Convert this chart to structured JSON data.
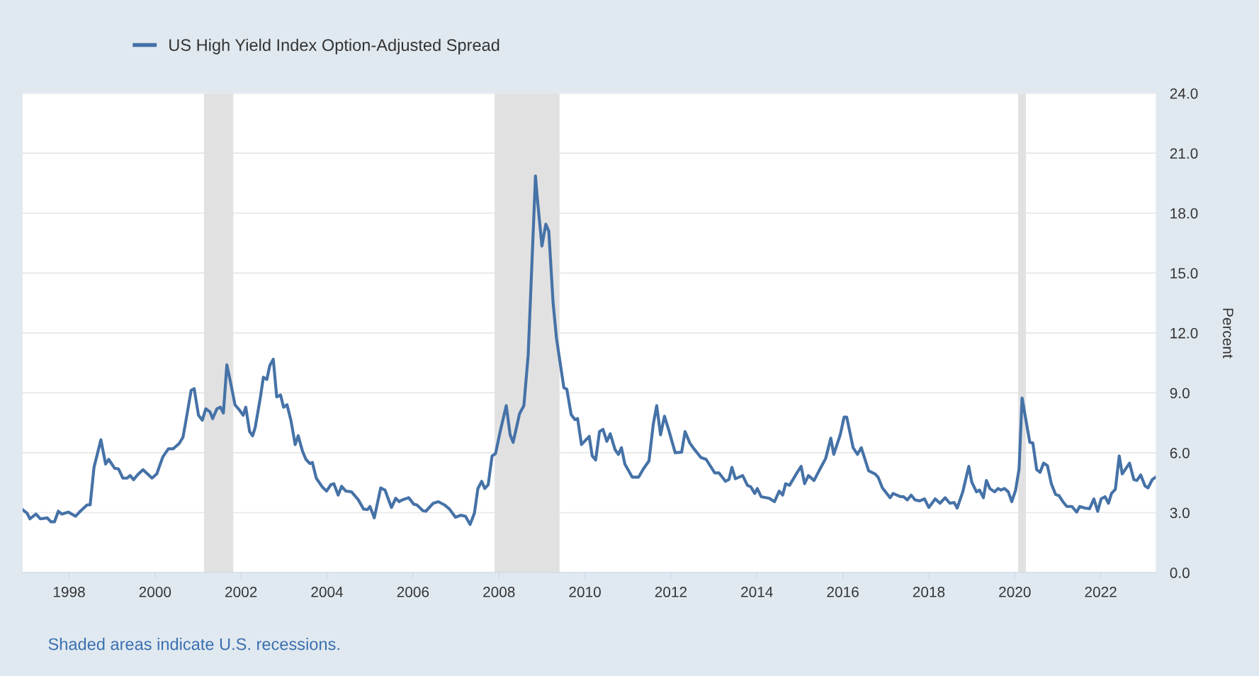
{
  "chart_data": {
    "type": "line",
    "x": [
      1996.92,
      1997.02,
      1997.09,
      1997.23,
      1997.33,
      1997.49,
      1997.58,
      1997.66,
      1997.75,
      1997.83,
      1997.98,
      1998.15,
      1998.26,
      1998.42,
      1998.49,
      1998.58,
      1998.74,
      1998.85,
      1998.92,
      1999.06,
      1999.15,
      1999.25,
      1999.35,
      1999.42,
      1999.5,
      1999.59,
      1999.72,
      1999.93,
      2000.04,
      2000.18,
      2000.31,
      2000.42,
      2000.56,
      2000.65,
      2000.72,
      2000.84,
      2000.91,
      2001.01,
      2001.1,
      2001.18,
      2001.28,
      2001.34,
      2001.44,
      2001.52,
      2001.59,
      2001.67,
      2001.74,
      2001.86,
      2001.97,
      2002.05,
      2002.11,
      2002.2,
      2002.27,
      2002.33,
      2002.45,
      2002.52,
      2002.6,
      2002.67,
      2002.75,
      2002.83,
      2002.92,
      2002.99,
      2003.07,
      2003.16,
      2003.26,
      2003.33,
      2003.43,
      2003.51,
      2003.6,
      2003.66,
      2003.75,
      2003.89,
      2003.99,
      2004.09,
      2004.16,
      2004.26,
      2004.34,
      2004.44,
      2004.57,
      2004.73,
      2004.85,
      2004.94,
      2005.0,
      2005.1,
      2005.25,
      2005.35,
      2005.5,
      2005.6,
      2005.68,
      2005.75,
      2005.9,
      2006.02,
      2006.09,
      2006.23,
      2006.3,
      2006.47,
      2006.59,
      2006.73,
      2006.84,
      2006.99,
      2007.11,
      2007.22,
      2007.33,
      2007.43,
      2007.51,
      2007.6,
      2007.67,
      2007.75,
      2007.84,
      2007.92,
      2008.02,
      2008.17,
      2008.26,
      2008.33,
      2008.48,
      2008.58,
      2008.68,
      2008.85,
      2008.89,
      2009.0,
      2009.09,
      2009.16,
      2009.26,
      2009.34,
      2009.51,
      2009.58,
      2009.68,
      2009.77,
      2009.83,
      2009.92,
      2010.1,
      2010.17,
      2010.25,
      2010.34,
      2010.42,
      2010.51,
      2010.59,
      2010.7,
      2010.78,
      2010.85,
      2010.93,
      2011.1,
      2011.25,
      2011.36,
      2011.49,
      2011.59,
      2011.67,
      2011.76,
      2011.85,
      2011.95,
      2012.1,
      2012.25,
      2012.33,
      2012.44,
      2012.55,
      2012.7,
      2012.82,
      2013.02,
      2013.12,
      2013.27,
      2013.35,
      2013.42,
      2013.5,
      2013.67,
      2013.78,
      2013.86,
      2013.95,
      2014.01,
      2014.1,
      2014.29,
      2014.41,
      2014.52,
      2014.6,
      2014.67,
      2014.76,
      2014.94,
      2015.03,
      2015.11,
      2015.2,
      2015.33,
      2015.47,
      2015.6,
      2015.72,
      2015.79,
      2015.94,
      2016.03,
      2016.09,
      2016.24,
      2016.34,
      2016.43,
      2016.6,
      2016.75,
      2016.82,
      2016.92,
      2017.1,
      2017.17,
      2017.34,
      2017.41,
      2017.5,
      2017.59,
      2017.68,
      2017.79,
      2017.9,
      2018.0,
      2018.15,
      2018.26,
      2018.38,
      2018.49,
      2018.59,
      2018.66,
      2018.79,
      2018.93,
      2019.0,
      2019.11,
      2019.18,
      2019.27,
      2019.34,
      2019.42,
      2019.53,
      2019.61,
      2019.68,
      2019.76,
      2019.85,
      2019.93,
      2020.02,
      2020.1,
      2020.17,
      2020.35,
      2020.42,
      2020.51,
      2020.59,
      2020.67,
      2020.76,
      2020.85,
      2020.95,
      2021.03,
      2021.12,
      2021.21,
      2021.33,
      2021.44,
      2021.51,
      2021.63,
      2021.74,
      2021.84,
      2021.93,
      2022.01,
      2022.1,
      2022.18,
      2022.25,
      2022.34,
      2022.43,
      2022.5,
      2022.67,
      2022.77,
      2022.84,
      2022.93,
      2023.03,
      2023.1,
      2023.2,
      2023.28
    ],
    "series": [
      {
        "name": "US High Yield Index Option-Adjusted Spread",
        "color": "#4572a7",
        "values": [
          3.15,
          2.98,
          2.69,
          2.93,
          2.69,
          2.74,
          2.54,
          2.54,
          3.07,
          2.93,
          3.03,
          2.82,
          3.07,
          3.39,
          3.39,
          5.27,
          6.65,
          5.43,
          5.67,
          5.22,
          5.19,
          4.73,
          4.73,
          4.86,
          4.65,
          4.89,
          5.15,
          4.73,
          4.94,
          5.79,
          6.2,
          6.2,
          6.46,
          6.78,
          7.63,
          9.13,
          9.21,
          7.88,
          7.63,
          8.2,
          8.04,
          7.71,
          8.2,
          8.28,
          7.99,
          10.4,
          9.7,
          8.4,
          8.12,
          7.88,
          8.28,
          7.06,
          6.85,
          7.27,
          8.77,
          9.78,
          9.67,
          10.37,
          10.68,
          8.8,
          8.89,
          8.28,
          8.4,
          7.63,
          6.41,
          6.85,
          6.08,
          5.67,
          5.46,
          5.51,
          4.73,
          4.29,
          4.08,
          4.4,
          4.45,
          3.88,
          4.32,
          4.08,
          4.04,
          3.64,
          3.18,
          3.15,
          3.31,
          2.74,
          4.24,
          4.13,
          3.26,
          3.72,
          3.55,
          3.64,
          3.75,
          3.42,
          3.39,
          3.1,
          3.07,
          3.47,
          3.55,
          3.39,
          3.2,
          2.77,
          2.87,
          2.82,
          2.41,
          2.98,
          4.21,
          4.57,
          4.21,
          4.4,
          5.84,
          5.95,
          6.98,
          8.36,
          6.9,
          6.52,
          7.96,
          8.36,
          10.89,
          19.86,
          18.8,
          16.35,
          17.45,
          17.09,
          13.5,
          11.71,
          9.26,
          9.18,
          7.91,
          7.66,
          7.71,
          6.41,
          6.82,
          5.84,
          5.64,
          7.06,
          7.17,
          6.57,
          6.95,
          6.16,
          5.92,
          6.25,
          5.43,
          4.78,
          4.78,
          5.19,
          5.59,
          7.42,
          8.36,
          6.9,
          7.83,
          7.14,
          6.0,
          6.03,
          7.06,
          6.49,
          6.16,
          5.76,
          5.67,
          4.99,
          4.99,
          4.57,
          4.66,
          5.27,
          4.7,
          4.86,
          4.37,
          4.29,
          3.96,
          4.21,
          3.8,
          3.72,
          3.55,
          4.08,
          3.88,
          4.45,
          4.37,
          5.02,
          5.32,
          4.45,
          4.86,
          4.61,
          5.19,
          5.71,
          6.73,
          5.92,
          6.9,
          7.79,
          7.79,
          6.25,
          5.92,
          6.25,
          5.1,
          4.94,
          4.78,
          4.24,
          3.75,
          3.96,
          3.8,
          3.8,
          3.64,
          3.88,
          3.64,
          3.59,
          3.69,
          3.26,
          3.69,
          3.47,
          3.75,
          3.47,
          3.51,
          3.23,
          4.04,
          5.32,
          4.53,
          4.04,
          4.13,
          3.75,
          4.61,
          4.21,
          4.04,
          4.21,
          4.13,
          4.21,
          4.04,
          3.55,
          4.13,
          5.19,
          8.74,
          6.52,
          6.49,
          5.15,
          5.02,
          5.48,
          5.35,
          4.45,
          3.91,
          3.85,
          3.55,
          3.31,
          3.31,
          3.03,
          3.31,
          3.23,
          3.2,
          3.69,
          3.07,
          3.69,
          3.8,
          3.47,
          3.96,
          4.17,
          5.84,
          4.94,
          5.48,
          4.66,
          4.61,
          4.89,
          4.34,
          4.24,
          4.66,
          4.78
        ]
      }
    ],
    "xlim": [
      1996.92,
      2023.28
    ],
    "xticks": [
      1998,
      2000,
      2002,
      2004,
      2006,
      2008,
      2010,
      2012,
      2014,
      2016,
      2018,
      2020,
      2022
    ],
    "ylim": [
      0,
      24
    ],
    "yticks": [
      {
        "value": 0,
        "label": "0.0"
      },
      {
        "value": 3,
        "label": "3.0"
      },
      {
        "value": 6,
        "label": "6.0"
      },
      {
        "value": 9,
        "label": "9.0"
      },
      {
        "value": 12,
        "label": "12.0"
      },
      {
        "value": 15,
        "label": "15.0"
      },
      {
        "value": 18,
        "label": "18.0"
      },
      {
        "value": 21,
        "label": "21.0"
      },
      {
        "value": 24,
        "label": "24.0"
      }
    ],
    "ylabel": "Percent",
    "bands": [
      {
        "axis": "x",
        "from": 2001.14,
        "to": 2001.82,
        "color": "#e1e1e1"
      },
      {
        "axis": "x",
        "from": 2007.9,
        "to": 2009.41,
        "color": "#e1e1e1"
      },
      {
        "axis": "x",
        "from": 2020.08,
        "to": 2020.26,
        "color": "#e1e1e1"
      }
    ],
    "grid": "y",
    "legend": "top left",
    "annotations": [
      "Shaded areas indicate U.S. recessions."
    ]
  }
}
